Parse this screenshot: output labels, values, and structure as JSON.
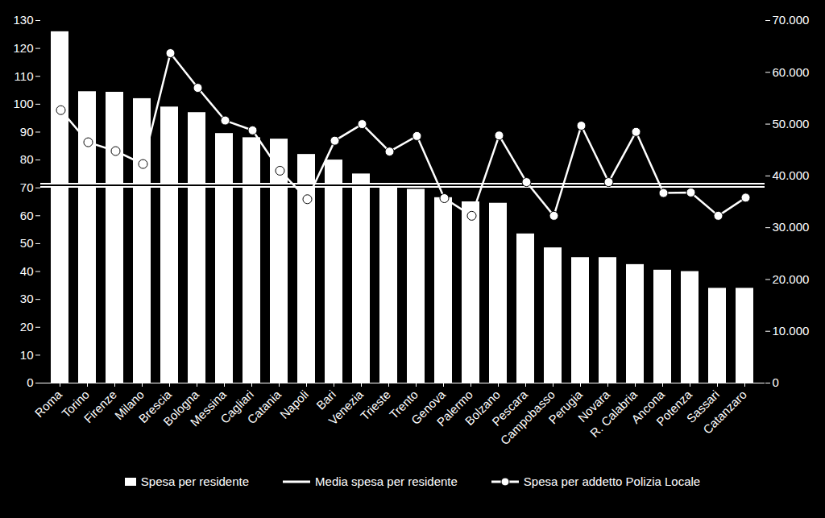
{
  "chart_data": {
    "type": "bar",
    "categories": [
      "Roma",
      "Torino",
      "Firenze",
      "Milano",
      "Brescia",
      "Bologna",
      "Messina",
      "Cagliari",
      "Catania",
      "Napoli",
      "Bari",
      "Venezia",
      "Trieste",
      "Trento",
      "Genova",
      "Palermo",
      "Bolzano",
      "Pescara",
      "Campobasso",
      "Perugia",
      "Novara",
      "R. Calabria",
      "Ancona",
      "Potenza",
      "Sassari",
      "Catanzaro"
    ],
    "series": [
      {
        "name": "Spesa per residente",
        "type": "bar",
        "color": "#ffffff",
        "values": [
          126,
          104.5,
          104.3,
          102,
          99,
          97,
          89.5,
          88,
          87.5,
          82,
          80,
          75,
          71.5,
          69.5,
          66.5,
          65,
          64.5,
          53.5,
          48.5,
          45,
          45,
          42.5,
          40.5,
          40,
          34,
          34
        ]
      },
      {
        "name": "Media spesa per residente",
        "type": "rule",
        "color": "#ffffff",
        "values": [
          71,
          71,
          71,
          71,
          71,
          71,
          71,
          71,
          71,
          71,
          71,
          71,
          71,
          71,
          71,
          71,
          71,
          71,
          71,
          71,
          71,
          71,
          71,
          71,
          71,
          71
        ]
      },
      {
        "name": "Spesa per addetto Polizia Locale",
        "type": "line",
        "color": "#ffffff",
        "marker": "circle",
        "axis": "y2",
        "values": [
          52700,
          46500,
          44800,
          42300,
          63700,
          57000,
          50700,
          48800,
          41000,
          35500,
          46800,
          50000,
          44700,
          47700,
          35700,
          32300,
          47800,
          38800,
          32300,
          49700,
          38800,
          48500,
          36700,
          36800,
          32300,
          35800
        ]
      }
    ],
    "ylim": [
      0,
      130
    ],
    "yticks": [
      0,
      10,
      20,
      30,
      40,
      50,
      60,
      70,
      80,
      90,
      100,
      110,
      120,
      130
    ],
    "y2lim": [
      0,
      70000
    ],
    "y2ticks": [
      0,
      {
        "value": 10000,
        "label": "10.000"
      },
      {
        "value": 20000,
        "label": "20.000"
      },
      {
        "value": 30000,
        "label": "30.000"
      },
      {
        "value": 40000,
        "label": "40.000"
      },
      {
        "value": 50000,
        "label": "50.000"
      },
      {
        "value": 60000,
        "label": "60.000"
      },
      {
        "value": 70000,
        "label": "70.000"
      }
    ],
    "legend": "bottom",
    "grid": false
  }
}
